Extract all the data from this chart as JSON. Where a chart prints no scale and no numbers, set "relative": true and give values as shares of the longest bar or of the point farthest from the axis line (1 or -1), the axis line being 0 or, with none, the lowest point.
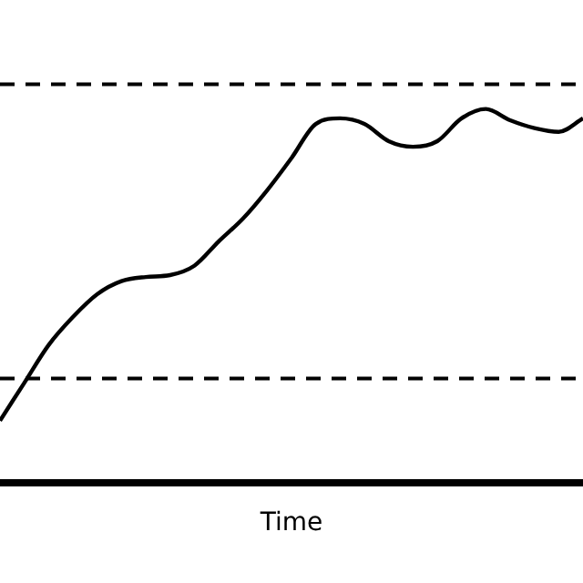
{
  "chart_data": {
    "type": "line",
    "relative": true,
    "xlabel": "Time",
    "categories": [
      null,
      null,
      null,
      null,
      null,
      null,
      null,
      null,
      null,
      null,
      null,
      null,
      null,
      null,
      null,
      null,
      null,
      null,
      null,
      null,
      null,
      null,
      null,
      null,
      null
    ],
    "series": [
      {
        "color": "#000000",
        "values": [
          0.167,
          0.268,
          0.369,
          0.444,
          0.505,
          0.54,
          0.551,
          0.556,
          0.581,
          0.646,
          0.707,
          0.783,
          0.869,
          0.96,
          0.975,
          0.96,
          0.914,
          0.899,
          0.914,
          0.975,
          1,
          0.97,
          0.949,
          0.939,
          0.975
        ]
      }
    ],
    "ref_lines": [
      {
        "axis": "y",
        "value": 1.066,
        "line_style": "dashed",
        "color": "#000000"
      },
      {
        "axis": "y",
        "value": 0.28,
        "line_style": "dashed",
        "color": "#000000"
      }
    ],
    "marker": "none",
    "line_style": "solid",
    "grid": false,
    "legend": false
  }
}
